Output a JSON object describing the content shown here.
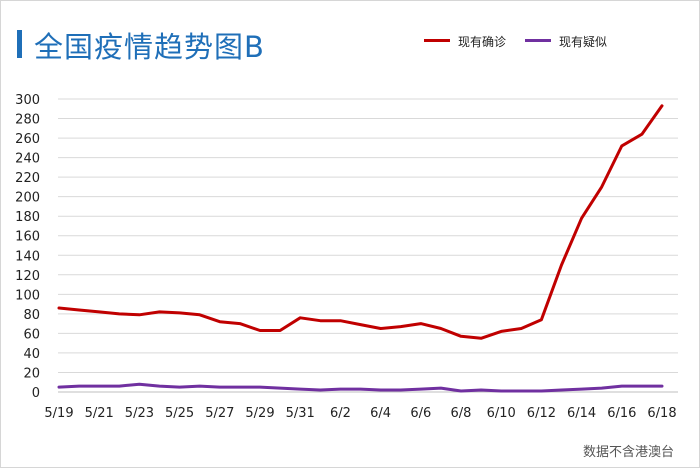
{
  "chart_data": {
    "type": "line",
    "title": "全国疫情趋势图B",
    "xlabel": "",
    "ylabel": "",
    "ylim": [
      0,
      300
    ],
    "y_ticks": [
      0,
      20,
      40,
      60,
      80,
      100,
      120,
      140,
      160,
      180,
      200,
      220,
      240,
      260,
      280,
      300
    ],
    "x": [
      "5/19",
      "5/20",
      "5/21",
      "5/22",
      "5/23",
      "5/24",
      "5/25",
      "5/26",
      "5/27",
      "5/28",
      "5/29",
      "5/30",
      "5/31",
      "6/1",
      "6/2",
      "6/3",
      "6/4",
      "6/5",
      "6/6",
      "6/7",
      "6/8",
      "6/9",
      "6/10",
      "6/11",
      "6/12",
      "6/13",
      "6/14",
      "6/15",
      "6/16",
      "6/17",
      "6/18"
    ],
    "x_tick_labels": [
      "5/19",
      "5/21",
      "5/23",
      "5/25",
      "5/27",
      "5/29",
      "5/31",
      "6/2",
      "6/4",
      "6/6",
      "6/8",
      "6/10",
      "6/12",
      "6/14",
      "6/16",
      "6/18"
    ],
    "grid": "horizontal",
    "legend_position": "top-right",
    "series": [
      {
        "name": "现有确诊",
        "color": "#c00000",
        "values": [
          86,
          84,
          82,
          80,
          79,
          82,
          81,
          79,
          72,
          70,
          63,
          63,
          76,
          73,
          73,
          69,
          65,
          67,
          70,
          65,
          57,
          55,
          62,
          65,
          74,
          130,
          178,
          210,
          252,
          264,
          293
        ]
      },
      {
        "name": "现有疑似",
        "color": "#7030a0",
        "values": [
          5,
          6,
          6,
          6,
          8,
          6,
          5,
          6,
          5,
          5,
          5,
          4,
          3,
          2,
          3,
          3,
          2,
          2,
          3,
          4,
          1,
          2,
          1,
          1,
          1,
          2,
          3,
          4,
          6,
          6,
          6
        ]
      }
    ]
  },
  "footer": {
    "source": "数据不含港澳台"
  }
}
